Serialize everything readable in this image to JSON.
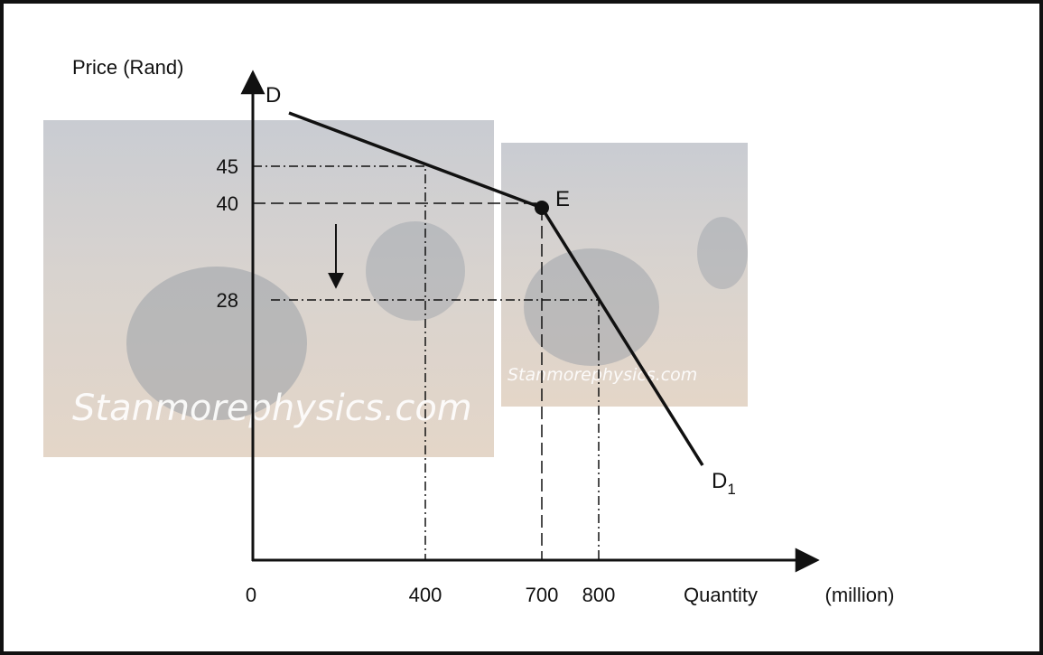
{
  "axes": {
    "y_label": "Price (Rand)",
    "x_label": "Quantity",
    "x_unit": "(million)",
    "origin": "0"
  },
  "y_tick_labels": [
    "45",
    "40",
    "28"
  ],
  "x_tick_labels": [
    "400",
    "700",
    "800"
  ],
  "curve_labels": {
    "start": "D",
    "kink": "E",
    "end": {
      "text": "D",
      "subscript": "1"
    }
  },
  "watermarks": [
    "Stanmorephysics.com",
    "Stanmorephysics.com"
  ]
}
